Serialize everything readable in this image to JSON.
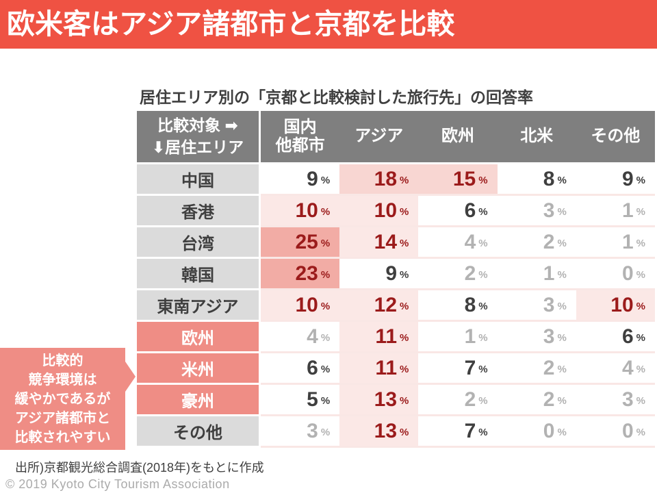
{
  "banner": {
    "title": "欧米客はアジア諸都市と京都を比較"
  },
  "table": {
    "title": "居住エリア別の「京都と比較検討した旅行先」の回答率",
    "corner": {
      "text": "比較対象 ➡\n⬇居住エリア"
    },
    "columns": [
      "国内\n他都市",
      "アジア",
      "欧州",
      "北米",
      "その他"
    ],
    "unit": "%",
    "highlight": {
      "strong_min": 23,
      "medium_min": 15,
      "light_min": 10,
      "dark_min": 5
    },
    "rows": [
      {
        "label": "中国",
        "style": "gray",
        "values": [
          9,
          18,
          15,
          8,
          9
        ]
      },
      {
        "label": "香港",
        "style": "gray",
        "values": [
          10,
          10,
          6,
          3,
          1
        ]
      },
      {
        "label": "台湾",
        "style": "gray",
        "values": [
          25,
          14,
          4,
          2,
          1
        ]
      },
      {
        "label": "韓国",
        "style": "gray",
        "values": [
          23,
          9,
          2,
          1,
          0
        ]
      },
      {
        "label": "東南アジア",
        "style": "gray",
        "values": [
          10,
          12,
          8,
          3,
          10
        ]
      },
      {
        "label": "欧州",
        "style": "salmon",
        "values": [
          4,
          11,
          1,
          3,
          6
        ]
      },
      {
        "label": "米州",
        "style": "salmon",
        "values": [
          6,
          11,
          7,
          2,
          4
        ]
      },
      {
        "label": "豪州",
        "style": "salmon",
        "values": [
          5,
          13,
          2,
          2,
          3
        ]
      },
      {
        "label": "その他",
        "style": "gray",
        "values": [
          3,
          13,
          7,
          0,
          0
        ]
      }
    ]
  },
  "chart_data": {
    "type": "table",
    "title": "居住エリア別の「京都と比較検討した旅行先」の回答率",
    "row_axis_label": "居住エリア",
    "column_axis_label": "比較対象",
    "columns": [
      "国内他都市",
      "アジア",
      "欧州",
      "北米",
      "その他"
    ],
    "rows": [
      "中国",
      "香港",
      "台湾",
      "韓国",
      "東南アジア",
      "欧州",
      "米州",
      "豪州",
      "その他"
    ],
    "values_percent": [
      [
        9,
        18,
        15,
        8,
        9
      ],
      [
        10,
        10,
        6,
        3,
        1
      ],
      [
        25,
        14,
        4,
        2,
        1
      ],
      [
        23,
        9,
        2,
        1,
        0
      ],
      [
        10,
        12,
        8,
        3,
        10
      ],
      [
        4,
        11,
        1,
        3,
        6
      ],
      [
        6,
        11,
        7,
        2,
        4
      ],
      [
        5,
        13,
        2,
        2,
        3
      ],
      [
        3,
        13,
        7,
        0,
        0
      ]
    ],
    "unit": "%",
    "highlighted_row_labels": [
      "欧州",
      "米州",
      "豪州"
    ]
  },
  "callout": {
    "text": "比較的\n競争環境は\n緩やかであるが\nアジア諸都市と\n比較されやすい"
  },
  "footer": {
    "source": "出所)京都観光総合調査(2018年)をもとに作成",
    "copyright": "© 2019 Kyoto City Tourism Association"
  },
  "palette": {
    "banner_bg": "#EF5243",
    "header_bg": "#7F7F7F",
    "row_label_bg": "#DBDBDB",
    "accent_salmon": "#EF8D85",
    "cell_bg_light": "#FBE8E6",
    "cell_bg_medium": "#F8D6D2",
    "cell_bg_strong": "#F2ACA5",
    "text_highlight": "#9B1B1B",
    "text_dark": "#3F3F3F",
    "text_faint": "#B2B2B2",
    "text_copyright": "#ABABAB"
  }
}
